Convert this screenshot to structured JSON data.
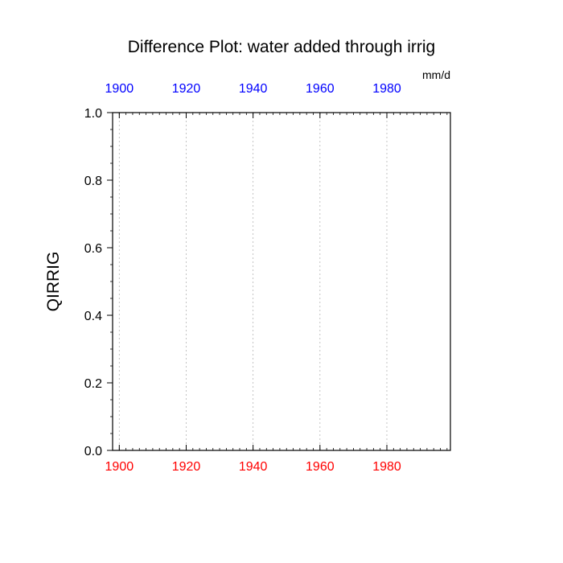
{
  "chart_data": {
    "type": "line",
    "title": "Difference Plot: water added through irrig",
    "units_label": "mm/d",
    "ylabel": "QIRRIG",
    "xlabel": "",
    "xlim": [
      1898,
      1999
    ],
    "ylim": [
      0.0,
      1.0
    ],
    "x_major_ticks": [
      1900,
      1920,
      1940,
      1960,
      1980
    ],
    "x_minor_step": 2,
    "y_major_ticks": [
      0.0,
      0.2,
      0.4,
      0.6,
      0.8,
      1.0
    ],
    "y_tick_labels": [
      "0.0",
      "0.2",
      "0.4",
      "0.6",
      "0.8",
      "1.0"
    ],
    "y_minor_step": 0.05,
    "x_grid": true,
    "y_grid": false,
    "top_axis_color": "#0000ff",
    "bottom_axis_color": "#ff0000",
    "series": []
  }
}
